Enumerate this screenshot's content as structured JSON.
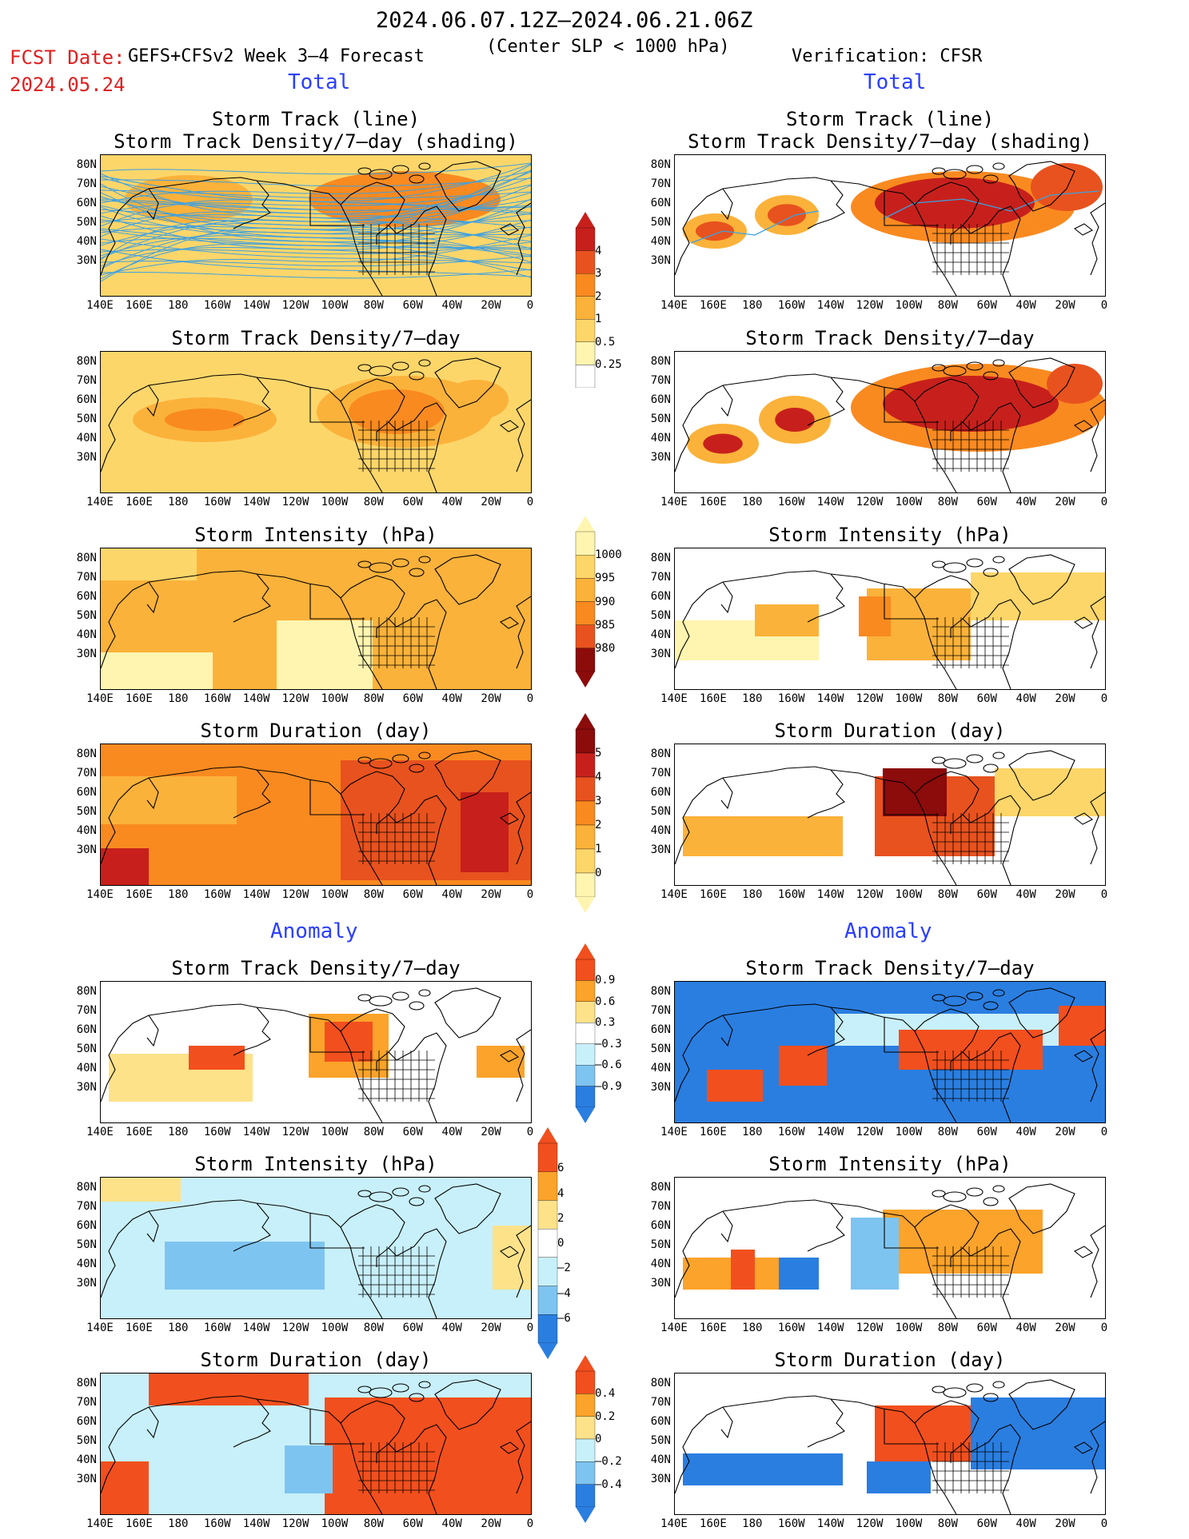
{
  "header": {
    "period": "2024.06.07.12Z–2024.06.21.06Z",
    "fcst_label": "FCST Date:",
    "fcst_date": "2024.05.24",
    "model": "GEFS+CFSv2 Week 3–4 Forecast",
    "criterion": "(Center SLP < 1000 hPa)",
    "verification": "Verification: CFSR"
  },
  "sections": {
    "total": "Total",
    "anomaly": "Anomaly"
  },
  "panel_titles": {
    "track_line": "Storm Track (line)",
    "track_density_shading": "Storm Track Density/7–day (shading)",
    "track_density": "Storm Track Density/7–day",
    "intensity": "Storm Intensity (hPa)",
    "duration": "Storm Duration (day)"
  },
  "axes": {
    "lat_labels": [
      "80N",
      "70N",
      "60N",
      "50N",
      "40N",
      "30N"
    ],
    "lon_labels": [
      "140E",
      "160E",
      "180",
      "160W",
      "140W",
      "120W",
      "100W",
      "80W",
      "60W",
      "40W",
      "20W",
      "0"
    ]
  },
  "colorbars": {
    "density_total": [
      "4",
      "3",
      "2",
      "1",
      "0.5",
      "0.25"
    ],
    "intensity_total": [
      "1000",
      "995",
      "990",
      "985",
      "980"
    ],
    "duration_total": [
      "5",
      "4",
      "3",
      "2",
      "1",
      "0"
    ],
    "density_anom": [
      "0.9",
      "0.6",
      "0.3",
      "–0.3",
      "–0.6",
      "–0.9"
    ],
    "intensity_anom": [
      "6",
      "4",
      "2",
      "0",
      "–2",
      "–4",
      "–6"
    ],
    "duration_anom": [
      "0.4",
      "0.2",
      "0",
      "–0.2",
      "–0.4"
    ]
  },
  "colors": {
    "seq": [
      "#fff5b0",
      "#fdd66a",
      "#fbb23a",
      "#f98a20",
      "#e8521e",
      "#c7201c",
      "#8c0b0b"
    ],
    "div_pos": [
      "#fde28a",
      "#fba32a",
      "#f24f1e"
    ],
    "div_neg": [
      "#c8f0fa",
      "#7ec4f0",
      "#2a7ee0"
    ],
    "track_line": "#3ea0e0",
    "title_red": "#e02020",
    "section_blue": "#2a3fff"
  }
}
